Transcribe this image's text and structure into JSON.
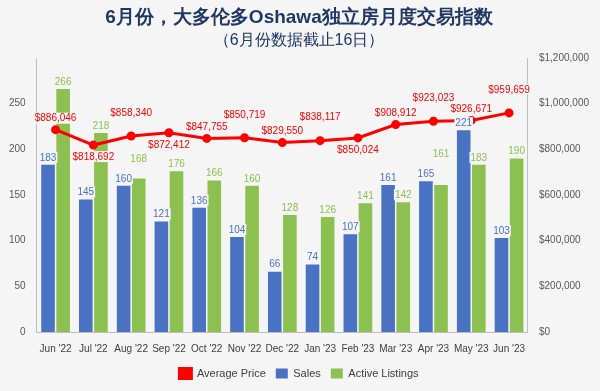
{
  "chart_data": {
    "type": "bar",
    "title": "6月份，大多伦多Oshawa独立房月度交易指数",
    "subtitle": "（6月份数据截止16日）",
    "categories": [
      "Jun '22",
      "Jul '22",
      "Aug '22",
      "Sep '22",
      "Oct '22",
      "Nov '22",
      "Dec '22",
      "Jan '23",
      "Feb '23",
      "Mar '23",
      "Apr '23",
      "May '23",
      "Jun '23"
    ],
    "series": [
      {
        "name": "Sales",
        "color": "#4a72c2",
        "values": [
          183,
          145,
          160,
          121,
          136,
          104,
          66,
          74,
          107,
          161,
          165,
          221,
          103
        ]
      },
      {
        "name": "Active Listings",
        "color": "#8cc152",
        "values": [
          266,
          218,
          168,
          176,
          166,
          160,
          128,
          126,
          141,
          142,
          161,
          183,
          190
        ]
      },
      {
        "name": "Average Price",
        "type": "line",
        "axis": "y2",
        "color": "#ff0000",
        "marker": "circle",
        "values": [
          886046,
          818692,
          858340,
          872412,
          847755,
          850719,
          829550,
          838117,
          850024,
          908912,
          923023,
          926671,
          959659
        ],
        "value_labels": [
          "$886,046",
          "$818,692",
          "$858,340",
          "$872,412",
          "$847,755",
          "$850,719",
          "$829,550",
          "$838,117",
          "$850,024",
          "$908,912",
          "$923,023",
          "$926,671",
          "$959,659"
        ]
      }
    ],
    "ylim": [
      0,
      300
    ],
    "yticks": [
      0,
      50,
      100,
      150,
      200,
      250
    ],
    "y2lim": [
      0,
      1200000
    ],
    "y2ticks": [
      {
        "value": 0,
        "label": "$0"
      },
      {
        "value": 200000,
        "label": "$200,000"
      },
      {
        "value": 400000,
        "label": "$400,000"
      },
      {
        "value": 600000,
        "label": "$600,000"
      },
      {
        "value": 800000,
        "label": "$800,000"
      },
      {
        "value": 1000000,
        "label": "$1,000,000"
      },
      {
        "value": 1200000,
        "label": "$1,200,000"
      }
    ],
    "grid": false,
    "legend": "bottom",
    "data_labels": true
  }
}
